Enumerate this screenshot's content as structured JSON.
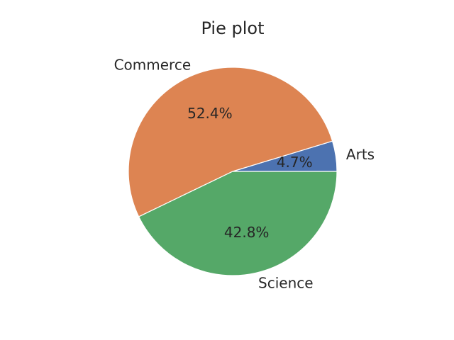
{
  "chart_data": {
    "type": "pie",
    "title": "Pie plot",
    "slices": [
      {
        "label": "Arts",
        "value": 4.7,
        "pct_label": "4.7%",
        "color": "#4c72b0"
      },
      {
        "label": "Commerce",
        "value": 52.4,
        "pct_label": "52.4%",
        "color": "#dd8452"
      },
      {
        "label": "Science",
        "value": 42.8,
        "pct_label": "42.8%",
        "color": "#55a868"
      }
    ],
    "start_angle_deg": 0,
    "direction": "counterclockwise",
    "wedge_edge_color": "#ffffff"
  }
}
